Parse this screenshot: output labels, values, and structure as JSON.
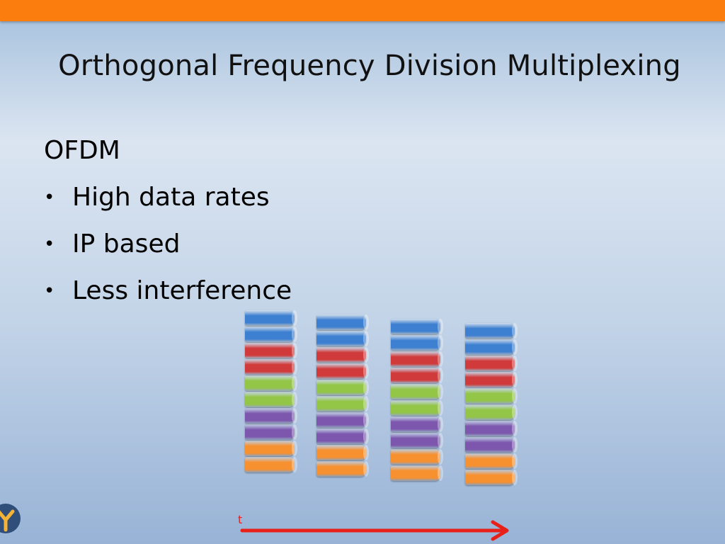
{
  "slide": {
    "title": "Orthogonal Frequency Division Multiplexing",
    "heading": "OFDM",
    "bullets": [
      "High data rates",
      "IP based",
      "Less interference"
    ],
    "bullet_symbol": "•",
    "time_axis_label": "t"
  },
  "colors": {
    "top_bar": "#fa7d0d",
    "blue": "#3d7fd0",
    "red": "#d03a3a",
    "green": "#93c547",
    "purple": "#7c57ad",
    "orange": "#f7902f",
    "axis": "#e8201a"
  },
  "stacks": [
    {
      "segments": [
        "blue",
        "blue",
        "red",
        "red",
        "green",
        "green",
        "purple",
        "purple",
        "orange",
        "orange"
      ]
    },
    {
      "segments": [
        "blue",
        "blue",
        "red",
        "red",
        "green",
        "green",
        "purple",
        "purple",
        "orange",
        "orange"
      ]
    },
    {
      "segments": [
        "blue",
        "blue",
        "red",
        "red",
        "green",
        "green",
        "purple",
        "purple",
        "orange",
        "orange"
      ]
    },
    {
      "segments": [
        "blue",
        "blue",
        "red",
        "red",
        "green",
        "green",
        "purple",
        "purple",
        "orange",
        "orange"
      ]
    }
  ]
}
